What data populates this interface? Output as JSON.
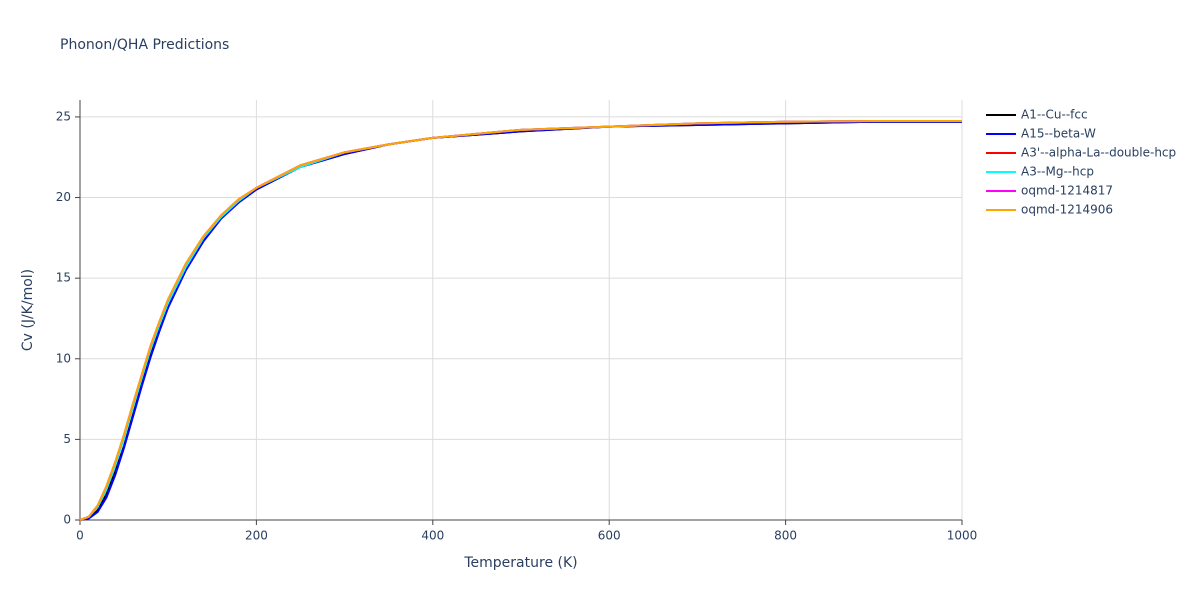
{
  "chart_data": {
    "type": "line",
    "title": "Phonon/QHA Predictions",
    "x_label": "Temperature (K)",
    "y_label": "Cv (J/K/mol)",
    "x": [
      0,
      10,
      20,
      30,
      40,
      50,
      60,
      70,
      80,
      90,
      100,
      120,
      140,
      160,
      180,
      200,
      250,
      300,
      350,
      400,
      500,
      600,
      700,
      800,
      900,
      1000
    ],
    "series": [
      {
        "name": "A1--Cu--fcc",
        "color": "#000000",
        "values": [
          0,
          0.1,
          0.6,
          1.6,
          3.0,
          4.6,
          6.5,
          8.4,
          10.2,
          11.8,
          13.2,
          15.5,
          17.3,
          18.7,
          19.7,
          20.5,
          21.9,
          22.7,
          23.3,
          23.7,
          24.1,
          24.4,
          24.5,
          24.6,
          24.7,
          24.7
        ]
      },
      {
        "name": "A15--beta-W",
        "color": "#0000ff",
        "values": [
          0,
          0.1,
          0.5,
          1.4,
          2.8,
          4.5,
          6.4,
          8.3,
          10.1,
          11.7,
          13.2,
          15.5,
          17.3,
          18.7,
          19.7,
          20.5,
          21.9,
          22.7,
          23.3,
          23.7,
          24.1,
          24.4,
          24.5,
          24.6,
          24.7,
          24.7
        ]
      },
      {
        "name": "A3'--alpha-La--double-hcp",
        "color": "#ff0000",
        "values": [
          0,
          0.2,
          0.8,
          2.0,
          3.5,
          5.2,
          7.1,
          8.9,
          10.7,
          12.2,
          13.6,
          15.8,
          17.5,
          18.8,
          19.8,
          20.6,
          22.0,
          22.8,
          23.3,
          23.7,
          24.2,
          24.4,
          24.6,
          24.7,
          24.75,
          24.75
        ]
      },
      {
        "name": "A3--Mg--hcp",
        "color": "#00ffff",
        "values": [
          0,
          0.2,
          0.8,
          1.9,
          3.4,
          5.1,
          7.0,
          8.8,
          10.6,
          12.1,
          13.5,
          15.7,
          17.5,
          18.8,
          19.8,
          20.6,
          21.9,
          22.8,
          23.3,
          23.7,
          24.2,
          24.4,
          24.6,
          24.7,
          24.75,
          24.75
        ]
      },
      {
        "name": "oqmd-1214817",
        "color": "#ff00ff",
        "values": [
          0,
          0.2,
          0.9,
          2.1,
          3.6,
          5.3,
          7.2,
          9.0,
          10.8,
          12.3,
          13.7,
          15.9,
          17.6,
          18.9,
          19.9,
          20.6,
          22.0,
          22.8,
          23.3,
          23.7,
          24.2,
          24.4,
          24.6,
          24.7,
          24.75,
          24.75
        ]
      },
      {
        "name": "oqmd-1214906",
        "color": "#ffa500",
        "values": [
          0,
          0.2,
          0.9,
          2.1,
          3.6,
          5.3,
          7.2,
          9.0,
          10.8,
          12.3,
          13.7,
          15.9,
          17.6,
          18.9,
          19.9,
          20.6,
          22.0,
          22.8,
          23.3,
          23.7,
          24.2,
          24.4,
          24.6,
          24.7,
          24.75,
          24.75
        ]
      }
    ],
    "xlim": [
      0,
      1000
    ],
    "xticks": [
      0,
      200,
      400,
      600,
      800,
      1000
    ],
    "ylim": [
      0,
      26.05
    ],
    "yticks": [
      0,
      5,
      10,
      15,
      20,
      25
    ],
    "grid": true,
    "legend": "right"
  }
}
